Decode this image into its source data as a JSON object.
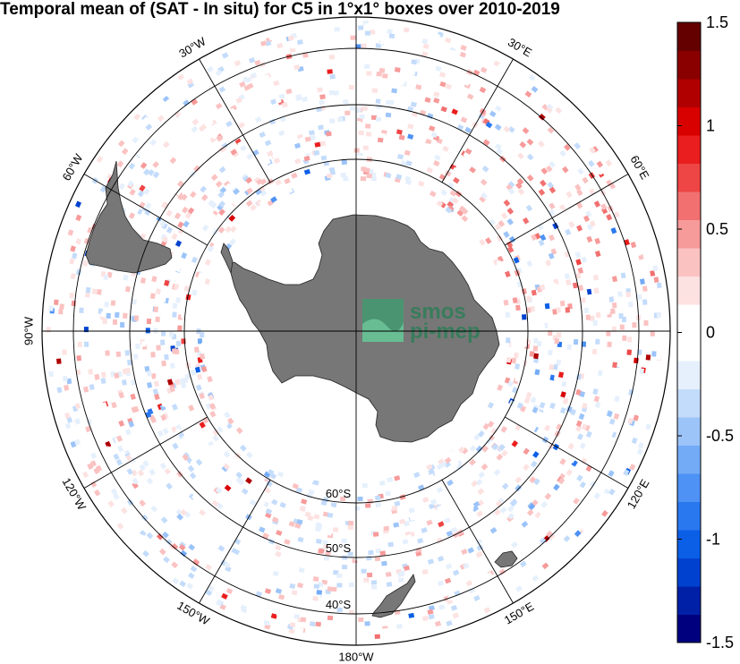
{
  "title": "Temporal mean of (SAT - In situ) for C5 in 1°x1° boxes over 2010-2019",
  "map": {
    "projection": "south-polar-stereographic",
    "pixel_field_range": [
      -1.5,
      1.5
    ],
    "longitude_labels": [
      {
        "lon": 30,
        "label": "30°E"
      },
      {
        "lon": 60,
        "label": "60°E"
      },
      {
        "lon": 120,
        "label": "120°E"
      },
      {
        "lon": 150,
        "label": "150°E"
      },
      {
        "lon": 180,
        "label": "180°W"
      },
      {
        "lon": -150,
        "label": "150°W"
      },
      {
        "lon": -120,
        "label": "120°W"
      },
      {
        "lon": -90,
        "label": "90°W"
      },
      {
        "lon": -60,
        "label": "60°W"
      },
      {
        "lon": -30,
        "label": "30°W"
      }
    ],
    "latitude_labels": [
      {
        "lat": -60,
        "label": "60°S"
      },
      {
        "lat": -50,
        "label": "50°S"
      },
      {
        "lat": -40,
        "label": "40°S"
      }
    ],
    "land_color": "#777777",
    "logo": {
      "line1": "smos",
      "line2": "pi-mep",
      "color": "#2f7d58"
    }
  },
  "colorbar": {
    "min": -1.5,
    "max": 1.5,
    "ticks": [
      {
        "value": 1.5,
        "label": "1.5"
      },
      {
        "value": 1,
        "label": "1"
      },
      {
        "value": 0.5,
        "label": "0.5"
      },
      {
        "value": 0,
        "label": "0"
      },
      {
        "value": -0.5,
        "label": "-0.5"
      },
      {
        "value": -1,
        "label": "-1"
      },
      {
        "value": -1.5,
        "label": "-1.5"
      }
    ],
    "colors": [
      "#00007f",
      "#0020a8",
      "#0042cf",
      "#0b5fe6",
      "#2a78f0",
      "#4d92f4",
      "#73abf7",
      "#9cc4f9",
      "#c4dcfb",
      "#e6f0fd",
      "#ffffff",
      "#ffffff",
      "#fde2e2",
      "#fbc2c2",
      "#f79a9a",
      "#f27070",
      "#ee4545",
      "#ea1e1e",
      "#d90000",
      "#b00000",
      "#8a0000",
      "#650000"
    ]
  }
}
